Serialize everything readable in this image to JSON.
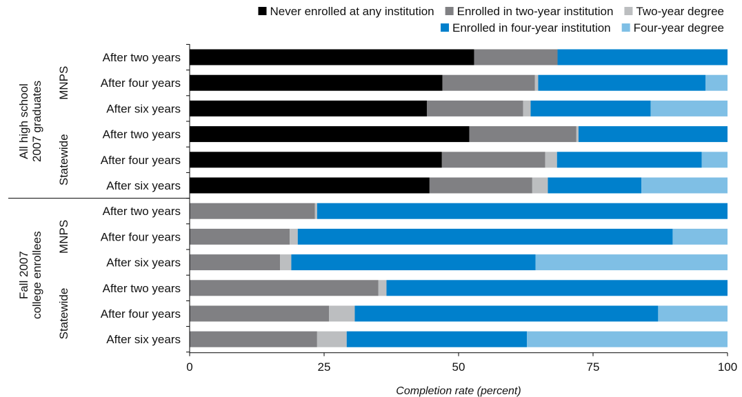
{
  "chart_data": {
    "type": "bar",
    "orientation": "horizontal",
    "stacked": true,
    "title": "",
    "xlabel": "Completion rate (percent)",
    "ylabel": "",
    "xlim": [
      0,
      100
    ],
    "x_ticks": [
      0,
      25,
      50,
      75,
      100
    ],
    "grid": false,
    "legend_position": "top",
    "categories": [
      "After two years",
      "After four years",
      "After six years",
      "After two years",
      "After four years",
      "After six years",
      "After two years",
      "After four years",
      "After six years",
      "After two years",
      "After four years",
      "After six years"
    ],
    "groups": [
      {
        "label": "All high school\n2007 graduates",
        "rows": [
          0,
          5
        ]
      },
      {
        "label": "Fall 2007\ncollege enrollees",
        "rows": [
          6,
          11
        ]
      }
    ],
    "subgroups": [
      {
        "label": "MNPS",
        "rows": [
          0,
          2
        ]
      },
      {
        "label": "Statewide",
        "rows": [
          3,
          5
        ]
      },
      {
        "label": "MNPS",
        "rows": [
          6,
          8
        ]
      },
      {
        "label": "Statewide",
        "rows": [
          9,
          11
        ]
      }
    ],
    "series": [
      {
        "name": "Never enrolled at any institution",
        "color": "#000000",
        "values": [
          52.9,
          47.0,
          44.1,
          52.0,
          46.9,
          44.6,
          0,
          0,
          0,
          0,
          0,
          0
        ]
      },
      {
        "name": "Enrolled in two-year institution",
        "color": "#808083",
        "values": [
          15.5,
          17.2,
          17.9,
          19.9,
          19.2,
          19.1,
          23.3,
          18.6,
          16.8,
          35.1,
          25.9,
          23.7
        ]
      },
      {
        "name": "Two-year degree",
        "color": "#bcbec0",
        "values": [
          0,
          0.6,
          1.4,
          0.4,
          2.2,
          2.9,
          0.4,
          1.5,
          2.1,
          1.5,
          4.8,
          5.5
        ]
      },
      {
        "name": "Enrolled in four-year institution",
        "color": "#0080cc",
        "values": [
          31.6,
          31.1,
          22.3,
          27.7,
          26.9,
          17.4,
          76.3,
          69.7,
          45.4,
          63.4,
          56.4,
          33.5
        ]
      },
      {
        "name": "Four-year degree",
        "color": "#7fbfe5",
        "values": [
          0,
          4.1,
          14.3,
          0,
          4.8,
          16.0,
          0,
          10.2,
          35.7,
          0,
          12.9,
          37.3
        ]
      }
    ]
  }
}
